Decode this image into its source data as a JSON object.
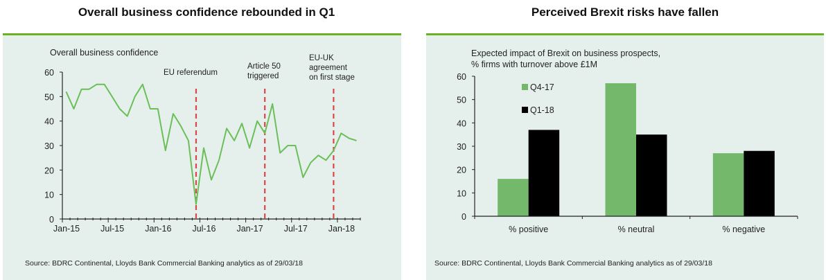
{
  "left": {
    "heading": "Overall business confidence rebounded in Q1",
    "source": "Source: BDRC Continental, Lloyds Bank Commercial Banking analytics as of 29/03/18"
  },
  "right": {
    "heading": "Perceived Brexit risks have fallen",
    "source": "Source: BDRC Continental, Lloyds Bank Commercial Banking analytics as of 29/03/18"
  },
  "colors": {
    "panel_bg": "#e5efeb",
    "accent_rule": "#6ab023",
    "line": "#6bbf59",
    "event_line": "#d9474b",
    "bar_q4": "#74b86c",
    "bar_q1": "#000000"
  },
  "chart_data": [
    {
      "type": "line",
      "title": "Overall business confidence",
      "xlabel": "",
      "ylabel": "",
      "ylim": [
        0,
        60
      ],
      "yticks": [
        "0",
        "10",
        "20",
        "30",
        "40",
        "50",
        "60"
      ],
      "x_tick_labels": [
        "Jan-15",
        "Jul-15",
        "Jan-16",
        "Jul-16",
        "Jan-17",
        "Jul-17",
        "Jan-18"
      ],
      "x": [
        "Jan-15",
        "Feb-15",
        "Mar-15",
        "Apr-15",
        "May-15",
        "Jun-15",
        "Jul-15",
        "Aug-15",
        "Sep-15",
        "Oct-15",
        "Nov-15",
        "Dec-15",
        "Jan-16",
        "Feb-16",
        "Mar-16",
        "Apr-16",
        "May-16",
        "Jun-16",
        "Jul-16",
        "Aug-16",
        "Sep-16",
        "Oct-16",
        "Nov-16",
        "Dec-16",
        "Jan-17",
        "Feb-17",
        "Mar-17",
        "Apr-17",
        "May-17",
        "Jun-17",
        "Jul-17",
        "Aug-17",
        "Sep-17",
        "Oct-17",
        "Nov-17",
        "Dec-17",
        "Jan-18",
        "Feb-18",
        "Mar-18"
      ],
      "series": [
        {
          "name": "Overall business confidence",
          "values": [
            52,
            45,
            53,
            53,
            55,
            55,
            50,
            45,
            42,
            50,
            55,
            45,
            45,
            28,
            43,
            38,
            32,
            6,
            29,
            16,
            24,
            37,
            32,
            39,
            29,
            40,
            35,
            47,
            27,
            30,
            30,
            17,
            23,
            26,
            24,
            28,
            35,
            33,
            32
          ]
        }
      ],
      "annotations": [
        {
          "label": "EU referendum",
          "x": "Jun-16"
        },
        {
          "label": "Article 50 triggered",
          "lines": [
            "Article 50",
            "triggered"
          ],
          "x": "Mar-17"
        },
        {
          "label": "EU-UK agreement on first stage",
          "lines": [
            "EU-UK",
            "agreement",
            "on first stage"
          ],
          "x": "Dec-17"
        }
      ],
      "grid": false,
      "legend": "none"
    },
    {
      "type": "bar",
      "title": "Expected impact of Brexit on business prospects, % firms with turnover above £1M",
      "title_lines": [
        "Expected impact of Brexit on business prospects,",
        "% firms with turnover above £1M"
      ],
      "categories": [
        "% positive",
        "% neutral",
        "% negative"
      ],
      "series": [
        {
          "name": "Q4-17",
          "values": [
            16,
            57,
            27
          ]
        },
        {
          "name": "Q1-18",
          "values": [
            37,
            35,
            28
          ]
        }
      ],
      "xlabel": "",
      "ylabel": "",
      "ylim": [
        0,
        60
      ],
      "yticks": [
        "0",
        "10",
        "20",
        "30",
        "40",
        "50",
        "60"
      ],
      "grid": false,
      "legend": "top-left"
    }
  ]
}
